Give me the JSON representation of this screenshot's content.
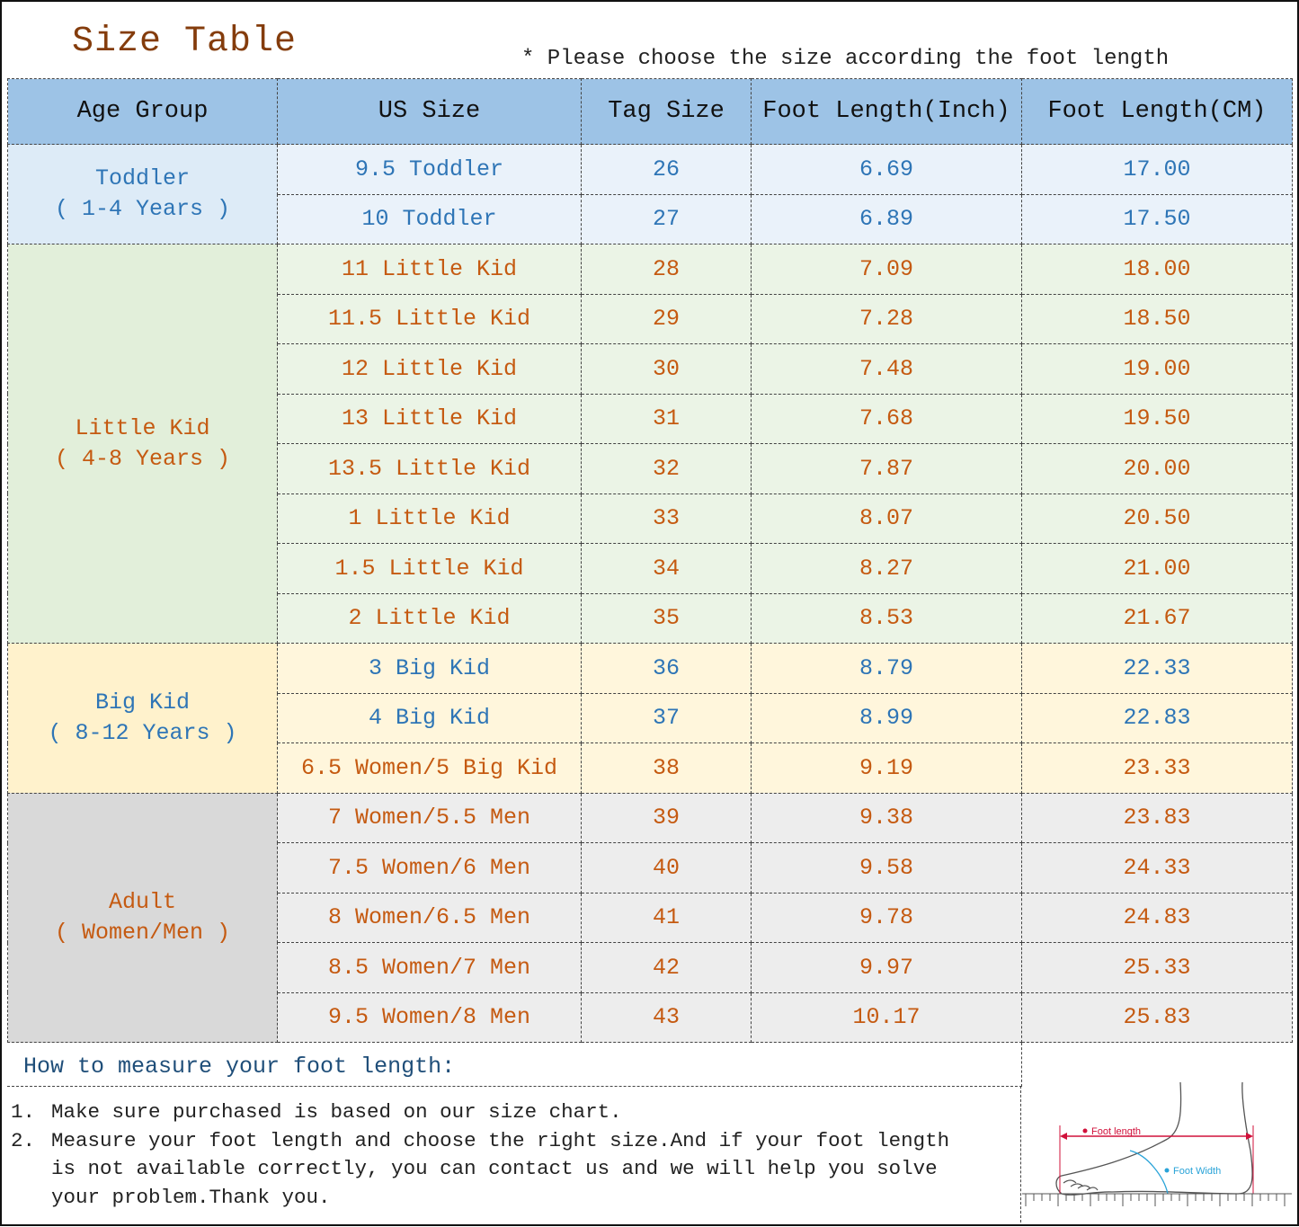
{
  "title": "Size Table",
  "note": "* Please choose the size according the foot length",
  "colors": {
    "header_bg": "#9dc3e6",
    "blue_text": "#2e75b6",
    "orange_text": "#c55a11",
    "title": "#843c0c"
  },
  "columns": [
    "Age Group",
    "US Size",
    "Tag Size",
    "Foot Length(Inch)",
    "Foot Length(CM)"
  ],
  "themes": {
    "toddler": {
      "group_bg": "#ddebf7",
      "row_bg": "#eaf2fa"
    },
    "little": {
      "group_bg": "#e2efda",
      "row_bg": "#ebf4e6"
    },
    "big": {
      "group_bg": "#fff2cc",
      "row_bg": "#fff6dc"
    },
    "adult": {
      "group_bg": "#d9d9d9",
      "row_bg": "#ededed"
    }
  },
  "groups": [
    {
      "name": "Toddler",
      "range": "( 1-4 Years )",
      "theme": "toddler",
      "text": "blue",
      "rows": [
        {
          "us": "9.5 Toddler",
          "tag": "26",
          "inch": "6.69",
          "cm": "17.00",
          "text": "blue"
        },
        {
          "us": "10 Toddler",
          "tag": "27",
          "inch": "6.89",
          "cm": "17.50",
          "text": "blue"
        }
      ]
    },
    {
      "name": "Little Kid",
      "range": "( 4-8 Years )",
      "theme": "little",
      "text": "orange",
      "rows": [
        {
          "us": "11 Little Kid",
          "tag": "28",
          "inch": "7.09",
          "cm": "18.00",
          "text": "orange"
        },
        {
          "us": "11.5 Little Kid",
          "tag": "29",
          "inch": "7.28",
          "cm": "18.50",
          "text": "orange"
        },
        {
          "us": "12 Little Kid",
          "tag": "30",
          "inch": "7.48",
          "cm": "19.00",
          "text": "orange"
        },
        {
          "us": "13 Little Kid",
          "tag": "31",
          "inch": "7.68",
          "cm": "19.50",
          "text": "orange"
        },
        {
          "us": "13.5 Little Kid",
          "tag": "32",
          "inch": "7.87",
          "cm": "20.00",
          "text": "orange"
        },
        {
          "us": "1 Little Kid",
          "tag": "33",
          "inch": "8.07",
          "cm": "20.50",
          "text": "orange"
        },
        {
          "us": "1.5 Little Kid",
          "tag": "34",
          "inch": "8.27",
          "cm": "21.00",
          "text": "orange"
        },
        {
          "us": "2 Little Kid",
          "tag": "35",
          "inch": "8.53",
          "cm": "21.67",
          "text": "orange"
        }
      ]
    },
    {
      "name": "Big Kid",
      "range": "( 8-12 Years )",
      "theme": "big",
      "text": "blue",
      "rows": [
        {
          "us": "3 Big Kid",
          "tag": "36",
          "inch": "8.79",
          "cm": "22.33",
          "text": "blue"
        },
        {
          "us": "4 Big Kid",
          "tag": "37",
          "inch": "8.99",
          "cm": "22.83",
          "text": "blue"
        },
        {
          "us": "6.5 Women/5 Big Kid",
          "tag": "38",
          "inch": "9.19",
          "cm": "23.33",
          "text": "orange"
        }
      ]
    },
    {
      "name": "Adult",
      "range": "( Women/Men )",
      "theme": "adult",
      "text": "orange",
      "rows": [
        {
          "us": "7 Women/5.5 Men",
          "tag": "39",
          "inch": "9.38",
          "cm": "23.83",
          "text": "orange"
        },
        {
          "us": "7.5 Women/6 Men",
          "tag": "40",
          "inch": "9.58",
          "cm": "24.33",
          "text": "orange"
        },
        {
          "us": "8 Women/6.5 Men",
          "tag": "41",
          "inch": "9.78",
          "cm": "24.83",
          "text": "orange"
        },
        {
          "us": "8.5 Women/7 Men",
          "tag": "42",
          "inch": "9.97",
          "cm": "25.33",
          "text": "orange"
        },
        {
          "us": "9.5 Women/8 Men",
          "tag": "43",
          "inch": "10.17",
          "cm": "25.83",
          "text": "orange"
        }
      ]
    }
  ],
  "measure": {
    "heading": "How to measure your foot length:",
    "steps": [
      {
        "num": "1.",
        "text": "Make sure purchased is based on our size chart."
      },
      {
        "num": "2.",
        "text": "Measure your foot length and choose the right size.And if your foot length is not available correctly, you can contact us and we will help you solve your problem.Thank you."
      }
    ],
    "diagram": {
      "length_label": "Foot length",
      "width_label": "Foot Width",
      "length_color": "#d0103a",
      "width_color": "#29a3d8"
    }
  }
}
